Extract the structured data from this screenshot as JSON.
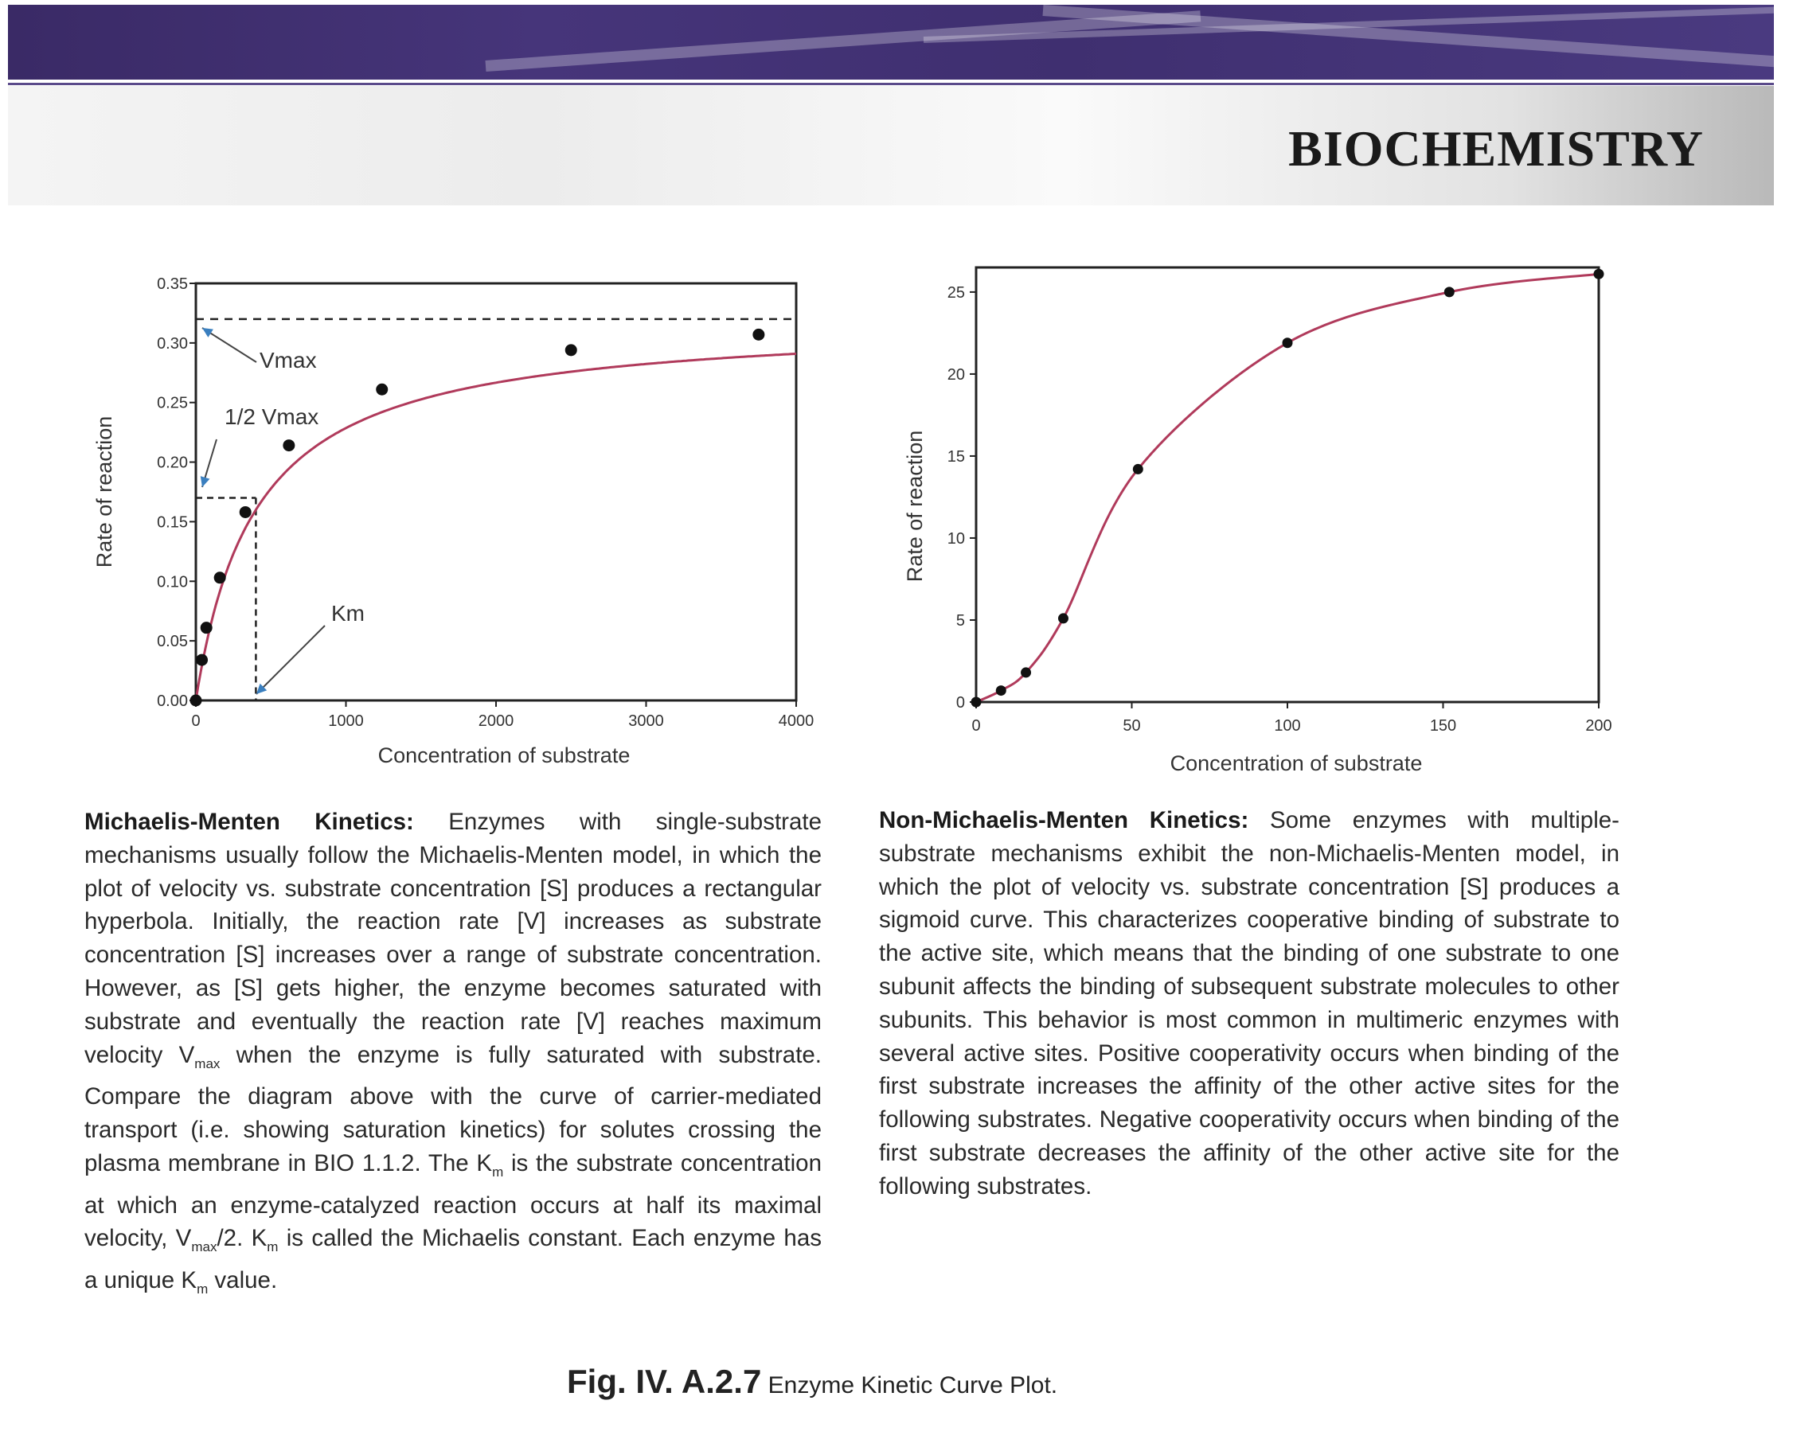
{
  "header": {
    "title": "BIOCHEMISTRY"
  },
  "chart_data": [
    {
      "type": "scatter",
      "xlabel": "Concentration of substrate",
      "ylabel": "Rate of reaction",
      "xlim": [
        0,
        4000
      ],
      "ylim": [
        0,
        0.35
      ],
      "xticks": [
        "0",
        "1000",
        "2000",
        "3000",
        "4000"
      ],
      "yticks": [
        "0.00",
        "0.05",
        "0.10",
        "0.15",
        "0.20",
        "0.25",
        "0.30",
        "0.35"
      ],
      "x": [
        0,
        40,
        70,
        160,
        330,
        620,
        1240,
        2500,
        3750
      ],
      "y": [
        0.0,
        0.034,
        0.061,
        0.103,
        0.158,
        0.214,
        0.261,
        0.294,
        0.307
      ],
      "fit": {
        "vmax": 0.32,
        "km": 400
      },
      "guides": {
        "vmax": 0.32,
        "half_vmax": 0.17,
        "km": 400
      },
      "annotations": [
        "Vmax",
        "1/2 Vmax",
        "Km"
      ],
      "line_color": "#b03a5b"
    },
    {
      "type": "line",
      "xlabel": "Concentration of substrate",
      "ylabel": "Rate of reaction",
      "xlim": [
        0,
        200
      ],
      "ylim": [
        0,
        26.5
      ],
      "xticks": [
        "0",
        "50",
        "100",
        "150",
        "200"
      ],
      "yticks": [
        "0",
        "5",
        "10",
        "15",
        "20",
        "25"
      ],
      "x": [
        0,
        8,
        16,
        28,
        52,
        100,
        152,
        200
      ],
      "y": [
        0.0,
        0.7,
        1.8,
        5.1,
        14.2,
        21.9,
        25.0,
        26.1
      ],
      "line_color": "#b03a5b"
    }
  ],
  "text": {
    "left_title": "Michaelis-Menten Kinetics:",
    "left_body": [
      " Enzymes with single-substrate mechanisms usually follow the Michaelis-Menten model, in which the plot of velocity vs. substrate concentration [S] produces a rectangular hyperbola. Initially, the reaction rate [V] increases as substrate concentration [S] increases over a range of substrate concentration. However, as [S] gets higher, the enzyme becomes saturated with substrate and eventually the reaction rate [V] reaches maximum velocity V",
      "max",
      " when the enzyme is fully saturated with substrate. Compare the diagram above with the curve of carrier-mediated transport (i.e. showing saturation kinetics) for solutes crossing the plasma membrane in BIO 1.1.2. The K",
      "m",
      " is the substrate concentration at which an enzyme-catalyzed reaction occurs at half its maximal velocity, V",
      "max",
      "/2. K",
      "m",
      " is called the Michaelis constant. Each enzyme has a unique K",
      "m",
      " value."
    ],
    "right_title": "Non-Michaelis-Menten Kinetics:",
    "right_body": " Some enzymes with multiple-substrate mechanisms exhibit the non-Michaelis-Menten model, in which the plot of velocity vs. substrate concentration [S] produces a sigmoid curve. This characterizes cooperative binding of substrate to the active site, which means that the binding of one substrate to one subunit affects the binding of subsequent substrate molecules to other subunits. This behavior is most common in multimeric enzymes with several active sites. Positive cooperativity occurs when binding of the first substrate increases the affinity of the other active sites for the following substrates. Negative cooperativity occurs when binding of the first substrate decreases the affinity of the other active site for the following substrates."
  },
  "caption": {
    "label": "Fig. IV. A.2.7",
    "text": "Enzyme Kinetic Curve Plot."
  }
}
